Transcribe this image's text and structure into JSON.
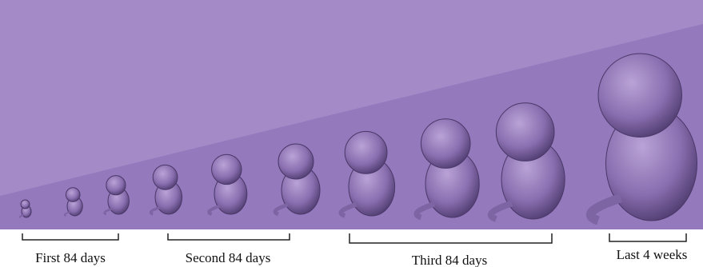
{
  "stages": [
    {
      "label": "First 84 days"
    },
    {
      "label": "Second 84 days"
    },
    {
      "label": "Third 84 days"
    },
    {
      "label": "Last 4 weeks"
    }
  ]
}
